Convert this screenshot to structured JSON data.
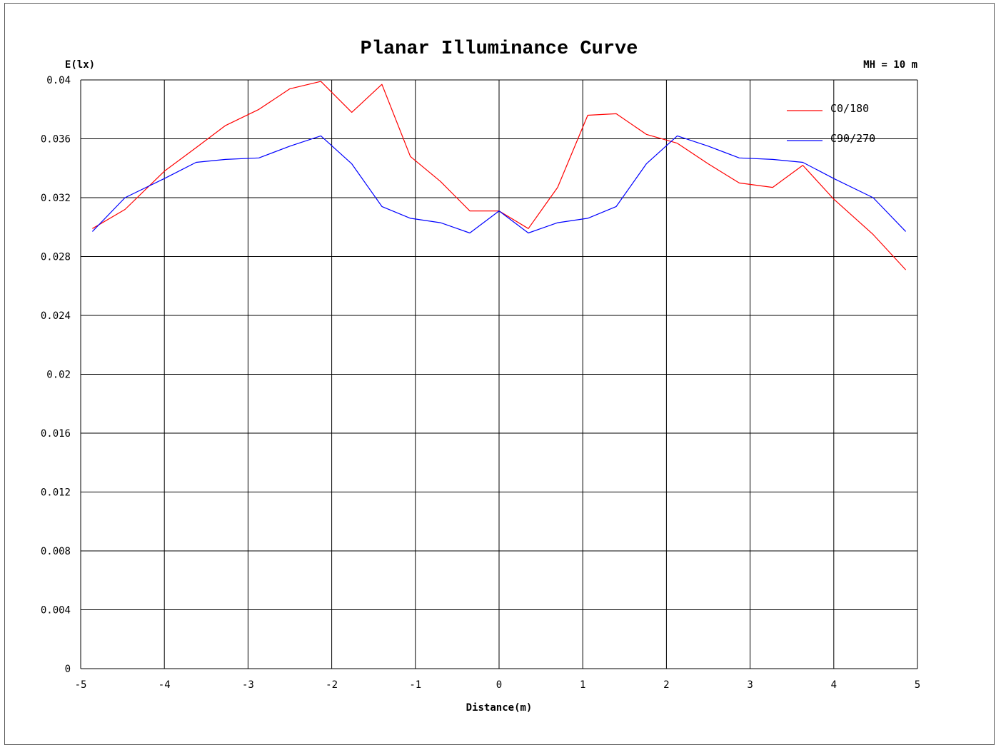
{
  "chart_data": {
    "type": "line",
    "title": "Planar Illuminance Curve",
    "ylabel": "E(lx)",
    "xlabel": "Distance(m)",
    "annotation": "MH = 10 m",
    "xlim": [
      -5,
      5
    ],
    "ylim": [
      0,
      0.04
    ],
    "x_ticks": [
      -5,
      -4,
      -3,
      -2,
      -1,
      0,
      1,
      2,
      3,
      4,
      5
    ],
    "y_ticks": [
      0,
      0.004,
      0.008,
      0.012,
      0.016,
      0.02,
      0.024,
      0.028,
      0.032,
      0.036,
      0.04
    ],
    "grid": true,
    "legend_position": "top-right",
    "series": [
      {
        "name": "C0/180",
        "color": "#ff0000",
        "x": [
          -4.86,
          -4.47,
          -4.0,
          -3.62,
          -3.27,
          -2.87,
          -2.5,
          -2.13,
          -1.76,
          -1.4,
          -1.06,
          -0.7,
          -0.35,
          0.0,
          0.35,
          0.7,
          1.06,
          1.4,
          1.76,
          2.13,
          2.5,
          2.87,
          3.27,
          3.63,
          4.0,
          4.47,
          4.86
        ],
        "y": [
          0.0299,
          0.0312,
          0.0338,
          0.0354,
          0.0369,
          0.038,
          0.0394,
          0.0399,
          0.0378,
          0.0397,
          0.0348,
          0.0331,
          0.0311,
          0.0311,
          0.0299,
          0.0327,
          0.0376,
          0.0377,
          0.0363,
          0.0357,
          0.0343,
          0.033,
          0.0327,
          0.0342,
          0.0319,
          0.0295,
          0.0271
        ]
      },
      {
        "name": "C90/270",
        "color": "#0000ff",
        "x": [
          -4.86,
          -4.47,
          -4.0,
          -3.62,
          -3.27,
          -2.87,
          -2.5,
          -2.13,
          -1.76,
          -1.4,
          -1.06,
          -0.7,
          -0.35,
          0.0,
          0.35,
          0.7,
          1.06,
          1.4,
          1.76,
          2.13,
          2.5,
          2.87,
          3.27,
          3.63,
          4.0,
          4.47,
          4.86
        ],
        "y": [
          0.0297,
          0.032,
          0.0333,
          0.0344,
          0.0346,
          0.0347,
          0.0355,
          0.0362,
          0.0343,
          0.0314,
          0.0306,
          0.0303,
          0.0296,
          0.0311,
          0.0296,
          0.0303,
          0.0306,
          0.0314,
          0.0343,
          0.0362,
          0.0355,
          0.0347,
          0.0346,
          0.0344,
          0.0333,
          0.032,
          0.0297
        ]
      }
    ]
  }
}
